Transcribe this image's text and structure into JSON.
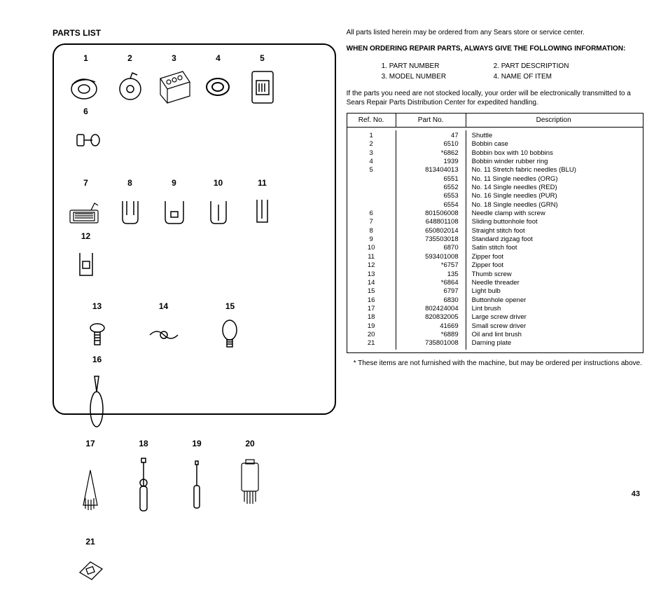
{
  "title": "PARTS LIST",
  "diagram": {
    "row1": [
      "1",
      "2",
      "3",
      "4",
      "5",
      "6"
    ],
    "row2": [
      "7",
      "8",
      "9",
      "10",
      "11",
      "12"
    ],
    "row3": [
      "13",
      "14",
      "15",
      "16"
    ],
    "row4": [
      "17",
      "18",
      "19",
      "20"
    ],
    "standalone": "21"
  },
  "intro": "All parts listed herein may be ordered from any Sears store or service center.",
  "ordering_heading": "WHEN ORDERING REPAIR PARTS, ALWAYS GIVE THE FOLLOWING INFORMATION:",
  "info_items": {
    "i1": "1. PART NUMBER",
    "i2": "2. PART DESCRIPTION",
    "i3": "3. MODEL NUMBER",
    "i4": "4. NAME OF ITEM"
  },
  "note": "If the parts you need are not stocked locally, your order will be electronically transmitted to a Sears Repair Parts Distribution Center for expedited handling.",
  "table": {
    "headers": {
      "ref": "Ref. No.",
      "part": "Part No.",
      "desc": "Description"
    },
    "rows": [
      {
        "ref": "1",
        "part": "47",
        "desc": "Shuttle"
      },
      {
        "ref": "2",
        "part": "6510",
        "desc": "Bobbin case"
      },
      {
        "ref": "3",
        "part": "*6862",
        "desc": "Bobbin box with 10 bobbins"
      },
      {
        "ref": "4",
        "part": "1939",
        "desc": "Bobbin winder rubber ring"
      },
      {
        "ref": "5",
        "part": "813404013",
        "desc": "No. 11 Stretch fabric needles (BLU)"
      },
      {
        "ref": "",
        "part": "6551",
        "desc": "No. 11 Single needles (ORG)"
      },
      {
        "ref": "",
        "part": "6552",
        "desc": "No. 14 Single needles (RED)"
      },
      {
        "ref": "",
        "part": "6553",
        "desc": "No. 16 Single needles (PUR)"
      },
      {
        "ref": "",
        "part": "6554",
        "desc": "No. 18 Single needles (GRN)"
      },
      {
        "ref": "6",
        "part": "801506008",
        "desc": "Needle clamp with screw"
      },
      {
        "ref": "7",
        "part": "648801108",
        "desc": "Sliding buttonhole foot"
      },
      {
        "ref": "8",
        "part": "650802014",
        "desc": "Straight stitch foot"
      },
      {
        "ref": "9",
        "part": "735503018",
        "desc": "Standard zigzag foot"
      },
      {
        "ref": "10",
        "part": "6870",
        "desc": "Satin stitch foot"
      },
      {
        "ref": "11",
        "part": "593401008",
        "desc": "Zipper foot"
      },
      {
        "ref": "12",
        "part": "*6757",
        "desc": "Zipper foot"
      },
      {
        "ref": "13",
        "part": "135",
        "desc": "Thumb screw"
      },
      {
        "ref": "14",
        "part": "*6864",
        "desc": "Needle threader"
      },
      {
        "ref": "15",
        "part": "6797",
        "desc": "Light bulb"
      },
      {
        "ref": "16",
        "part": "6830",
        "desc": "Buttonhole opener"
      },
      {
        "ref": "17",
        "part": "802424004",
        "desc": "Lint brush"
      },
      {
        "ref": "18",
        "part": "820832005",
        "desc": "Large screw driver"
      },
      {
        "ref": "19",
        "part": "41669",
        "desc": "Small screw driver"
      },
      {
        "ref": "20",
        "part": "*6889",
        "desc": "Oil and lint brush"
      },
      {
        "ref": "21",
        "part": "735801008",
        "desc": "Darning plate"
      }
    ]
  },
  "footnote": "* These items are not furnished with the machine, but may be ordered per instructions above.",
  "page_number": "43"
}
